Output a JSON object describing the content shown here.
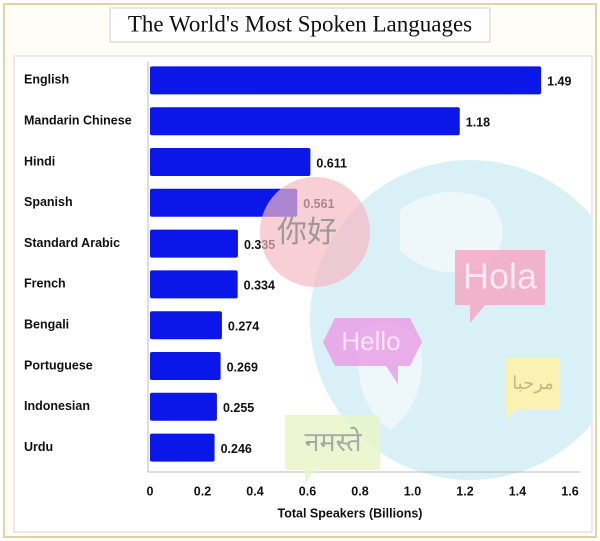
{
  "chart_data": {
    "type": "bar",
    "title": "The World's Most Spoken Languages",
    "categories": [
      "English",
      "Mandarin Chinese",
      "Hindi",
      "Spanish",
      "Standard Arabic",
      "French",
      "Bengali",
      "Portuguese",
      "Indonesian",
      "Urdu"
    ],
    "values": [
      1.49,
      1.18,
      0.611,
      0.561,
      0.335,
      0.334,
      0.274,
      0.269,
      0.255,
      0.246
    ],
    "color": "#0b17e8",
    "xlim": [
      0,
      1.6
    ],
    "xticks": [
      0,
      0.2,
      0.4,
      0.6,
      0.8,
      {
        "value": 1,
        "label": "1.0"
      },
      1.2,
      1.4,
      1.6
    ],
    "xlabel": "Total Speakers (Billions)",
    "decorations": [
      "你好",
      "Hola",
      "Hello",
      "مرحبا",
      "नमस्ते"
    ]
  }
}
